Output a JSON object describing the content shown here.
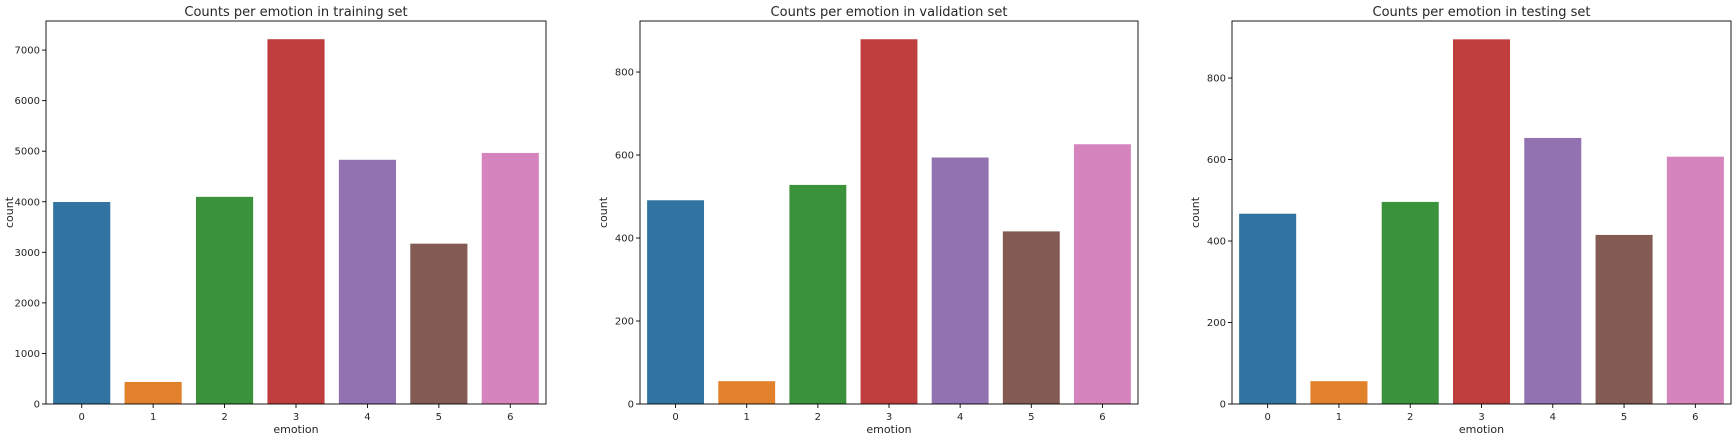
{
  "figure": {
    "background": "#ffffff"
  },
  "colors": [
    "#3274a1",
    "#e1812c",
    "#3a923a",
    "#c03d3e",
    "#9372b2",
    "#845b53",
    "#d684bd"
  ],
  "chart_data": [
    {
      "type": "bar",
      "title": "Counts per emotion in training set",
      "xlabel": "emotion",
      "ylabel": "count",
      "categories": [
        "0",
        "1",
        "2",
        "3",
        "4",
        "5",
        "6"
      ],
      "values": [
        3995,
        436,
        4097,
        7215,
        4830,
        3171,
        4965
      ],
      "ylim": [
        0,
        7575
      ],
      "yticks": [
        0,
        1000,
        2000,
        3000,
        4000,
        5000,
        6000,
        7000
      ],
      "grid": false,
      "legend": "none"
    },
    {
      "type": "bar",
      "title": "Counts per emotion in validation set",
      "xlabel": "emotion",
      "ylabel": "count",
      "categories": [
        "0",
        "1",
        "2",
        "3",
        "4",
        "5",
        "6"
      ],
      "values": [
        491,
        55,
        528,
        879,
        594,
        416,
        626
      ],
      "ylim": [
        0,
        923
      ],
      "yticks": [
        0,
        200,
        400,
        600,
        800
      ],
      "grid": false,
      "legend": "none"
    },
    {
      "type": "bar",
      "title": "Counts per emotion in testing set",
      "xlabel": "emotion",
      "ylabel": "count",
      "categories": [
        "0",
        "1",
        "2",
        "3",
        "4",
        "5",
        "6"
      ],
      "values": [
        467,
        56,
        496,
        895,
        653,
        415,
        607
      ],
      "ylim": [
        0,
        940
      ],
      "yticks": [
        0,
        200,
        400,
        600,
        800
      ],
      "grid": false,
      "legend": "none"
    }
  ]
}
